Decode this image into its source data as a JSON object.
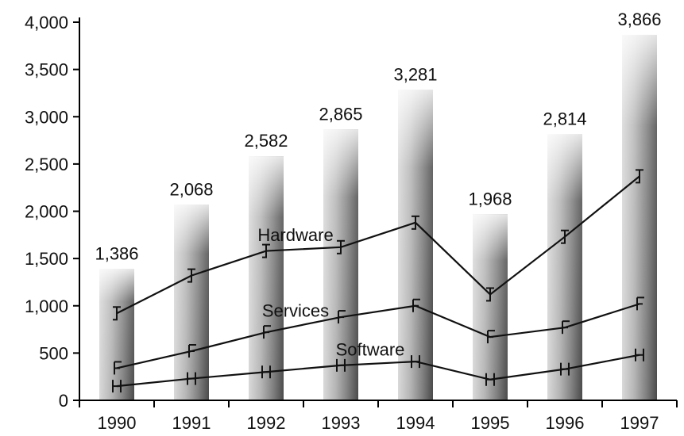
{
  "chart_data": {
    "type": "bar",
    "categories": [
      "1990",
      "1991",
      "1992",
      "1993",
      "1994",
      "1995",
      "1996",
      "1997"
    ],
    "ylim": [
      0,
      4000
    ],
    "yticks": [
      0,
      500,
      1000,
      1500,
      2000,
      2500,
      3000,
      3500,
      4000
    ],
    "ytick_labels": [
      "0",
      "500",
      "1,000",
      "1,500",
      "2,000",
      "2,500",
      "3,000",
      "3,500",
      "4,000"
    ],
    "bars": {
      "values": [
        1386,
        2068,
        2582,
        2865,
        3281,
        1968,
        2814,
        3866
      ],
      "labels": [
        "1,386",
        "2,068",
        "2,582",
        "2,865",
        "3,281",
        "1,968",
        "2,814",
        "3,866"
      ]
    },
    "series": [
      {
        "name": "Hardware",
        "values": [
          920,
          1320,
          1580,
          1620,
          1880,
          1120,
          1730,
          2370
        ],
        "marker": "I"
      },
      {
        "name": "Services",
        "values": [
          340,
          520,
          720,
          880,
          1000,
          670,
          770,
          1020
        ],
        "marker": "F"
      },
      {
        "name": "Software",
        "values": [
          150,
          230,
          300,
          370,
          410,
          220,
          330,
          480
        ],
        "marker": "H"
      }
    ],
    "grid": false,
    "legend": "none",
    "colors": {
      "bar": "#9a9a9a",
      "line": "#111111"
    }
  }
}
